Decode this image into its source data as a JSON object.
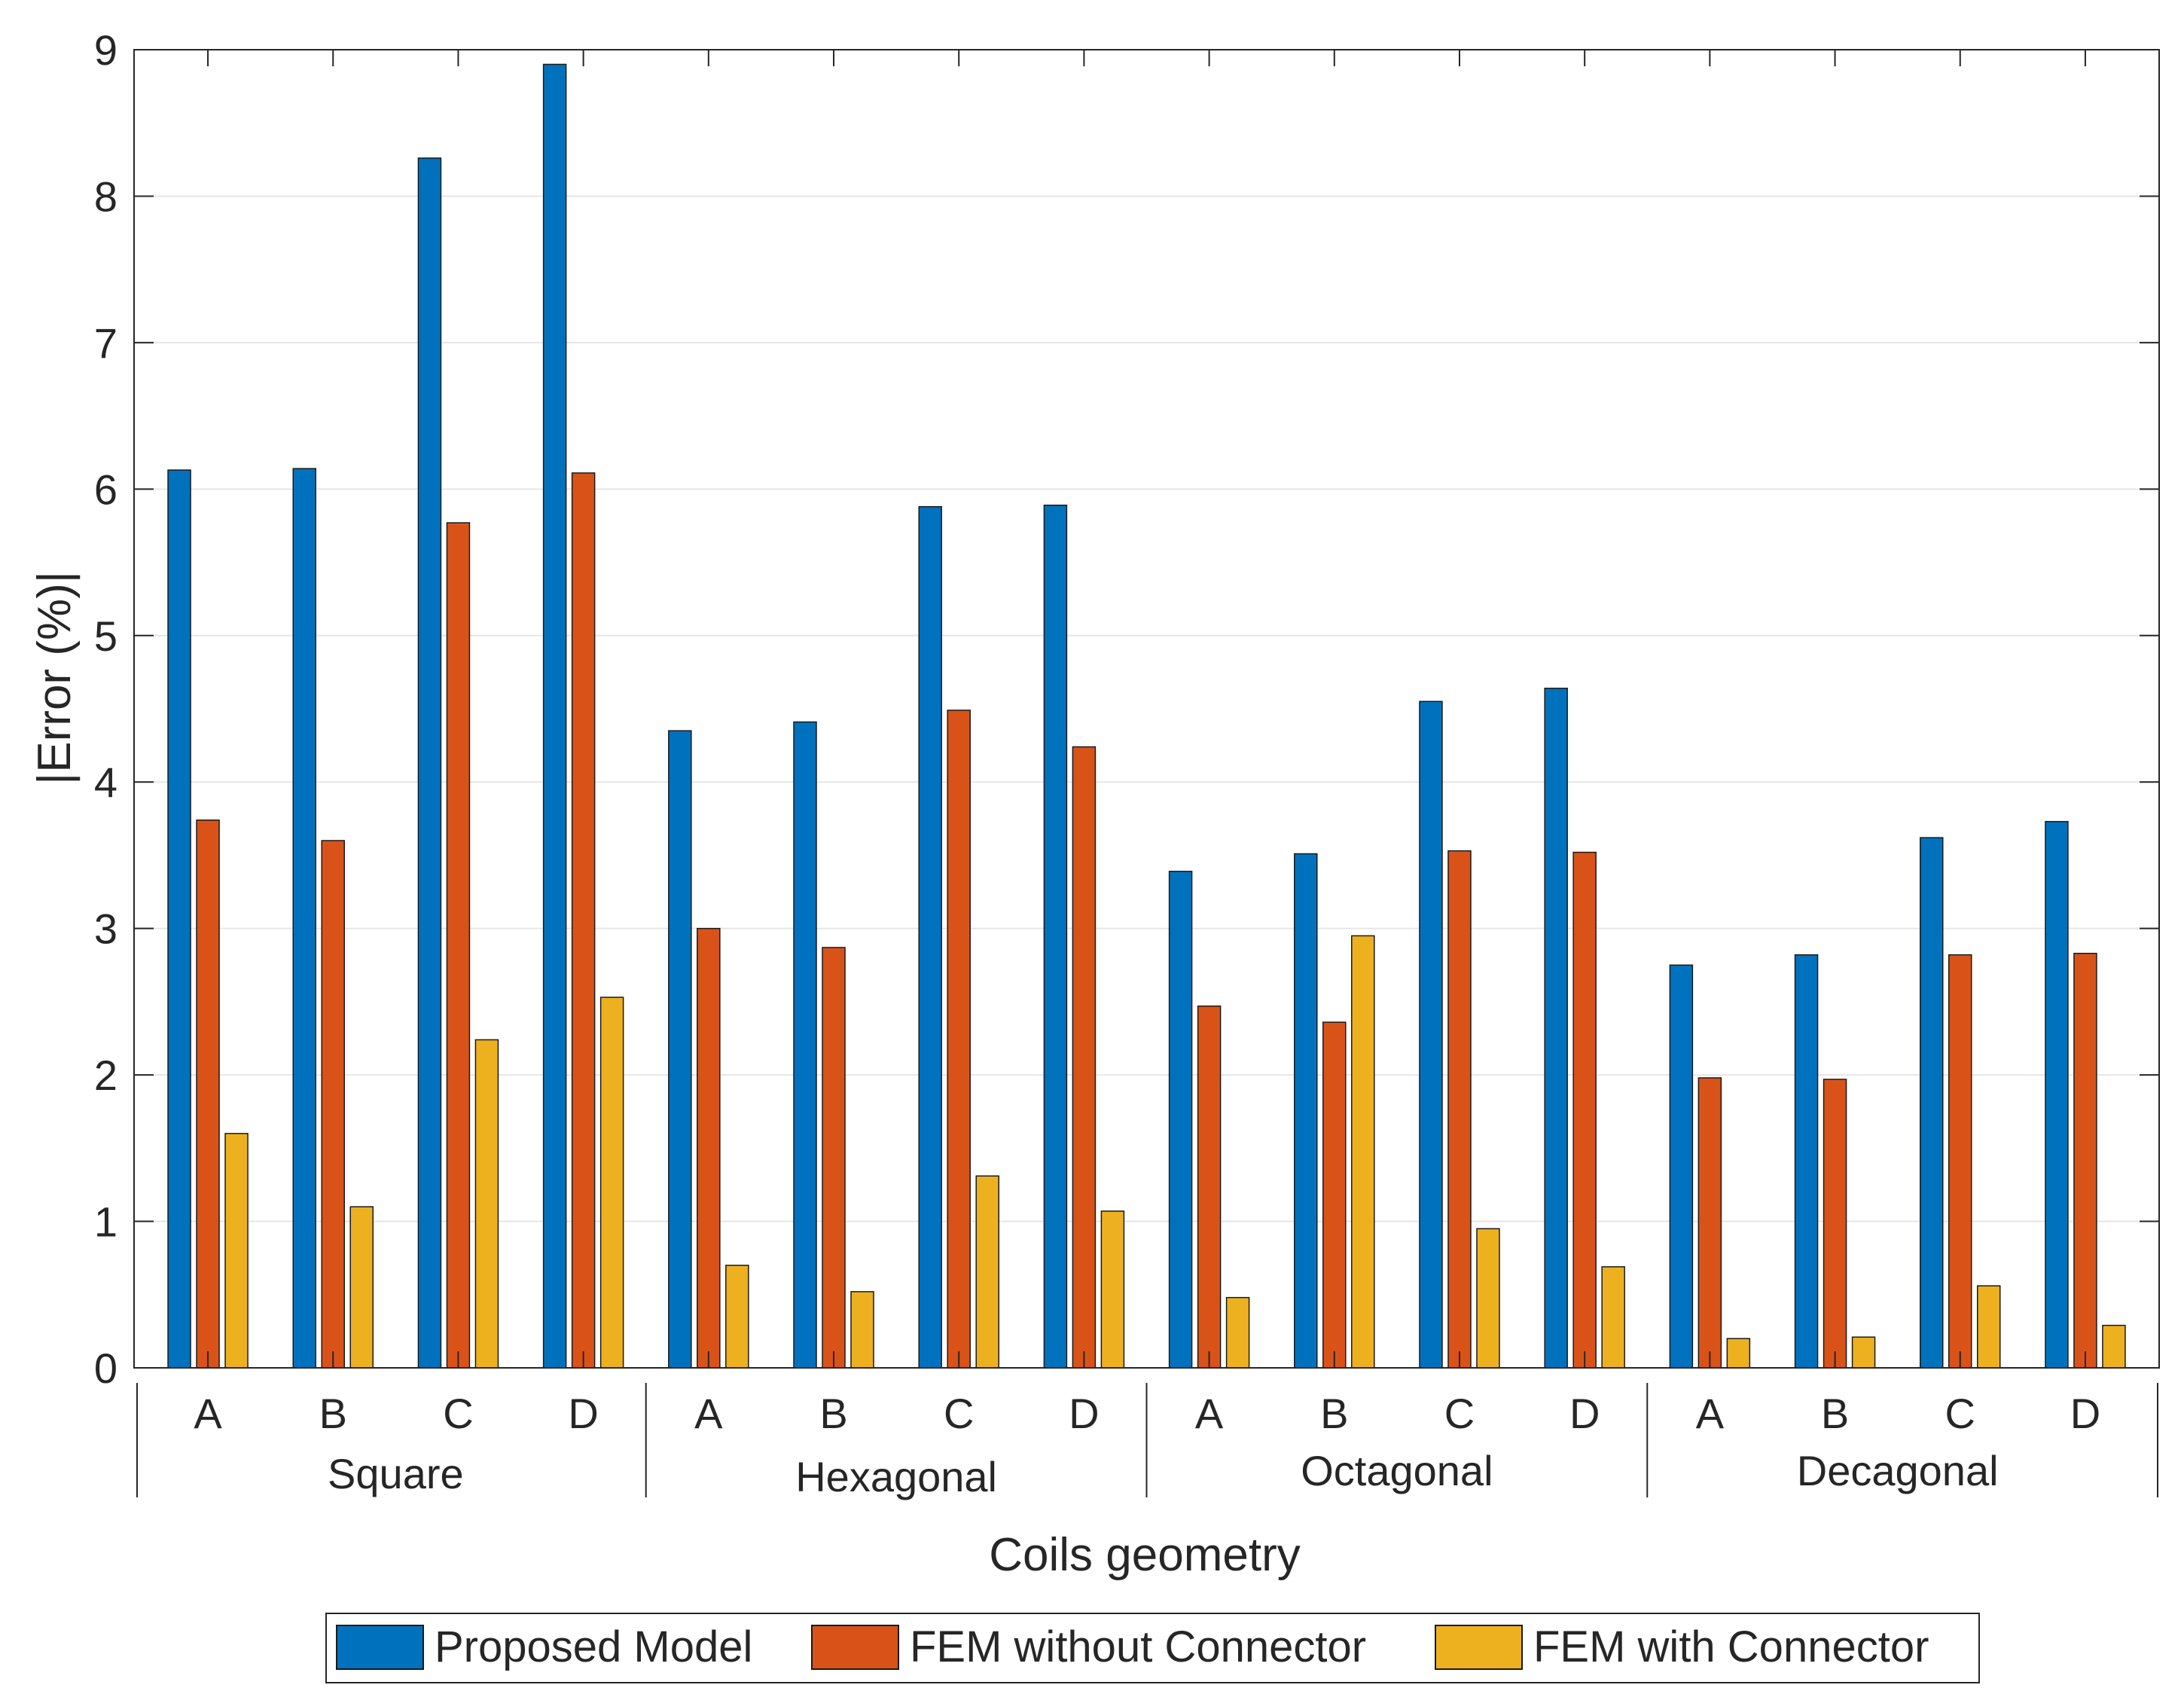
{
  "chart_data": {
    "type": "bar",
    "title": "",
    "xlabel": "Coils geometry",
    "ylabel": "|Error (%)|",
    "ylim": [
      0,
      9
    ],
    "yticks": [
      0,
      1,
      2,
      3,
      4,
      5,
      6,
      7,
      8,
      9
    ],
    "grid": true,
    "legend_position": "bottom-center",
    "groups": [
      {
        "name": "Square",
        "categories": [
          "A",
          "B",
          "C",
          "D"
        ]
      },
      {
        "name": "Hexagonal",
        "categories": [
          "A",
          "B",
          "C",
          "D"
        ]
      },
      {
        "name": "Octagonal",
        "categories": [
          "A",
          "B",
          "C",
          "D"
        ]
      },
      {
        "name": "Decagonal",
        "categories": [
          "A",
          "B",
          "C",
          "D"
        ]
      }
    ],
    "series": [
      {
        "name": "Proposed Model",
        "color": "#0072BD",
        "values": [
          6.13,
          6.14,
          8.26,
          8.9,
          4.35,
          4.41,
          5.88,
          5.89,
          3.39,
          3.51,
          4.55,
          4.64,
          2.75,
          2.82,
          3.62,
          3.73
        ]
      },
      {
        "name": "FEM without Connector",
        "color": "#D95319",
        "values": [
          3.74,
          3.6,
          5.77,
          6.11,
          3.0,
          2.87,
          4.49,
          4.24,
          2.47,
          2.36,
          3.53,
          3.52,
          1.98,
          1.97,
          2.82,
          2.83
        ]
      },
      {
        "name": "FEM with Connector",
        "color": "#EDB120",
        "values": [
          1.6,
          1.1,
          2.24,
          2.53,
          0.7,
          0.52,
          1.31,
          1.07,
          0.48,
          2.95,
          0.95,
          0.69,
          0.2,
          0.21,
          0.56,
          0.29
        ]
      }
    ]
  }
}
